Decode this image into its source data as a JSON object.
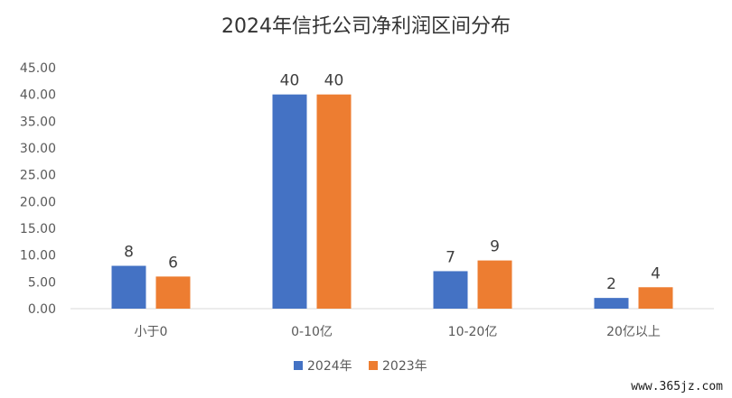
{
  "chart_data": {
    "type": "bar",
    "title": "2024年信托公司净利润区间分布",
    "categories": [
      "小于0",
      "0-10亿",
      "10-20亿",
      "20亿以上"
    ],
    "series": [
      {
        "name": "2024年",
        "values": [
          8,
          40,
          7,
          2
        ],
        "color": "#4472c4"
      },
      {
        "name": "2023年",
        "values": [
          6,
          40,
          9,
          4
        ],
        "color": "#ed7d31"
      }
    ],
    "ylim": [
      0,
      45
    ],
    "yticks": [
      "0.00",
      "5.00",
      "10.00",
      "15.00",
      "20.00",
      "25.00",
      "30.00",
      "35.00",
      "40.00",
      "45.00"
    ],
    "ytick_values": [
      0,
      5,
      10,
      15,
      20,
      25,
      30,
      35,
      40,
      45
    ],
    "grid": false,
    "legend": "bottom"
  },
  "watermark": "www.365jz.com"
}
